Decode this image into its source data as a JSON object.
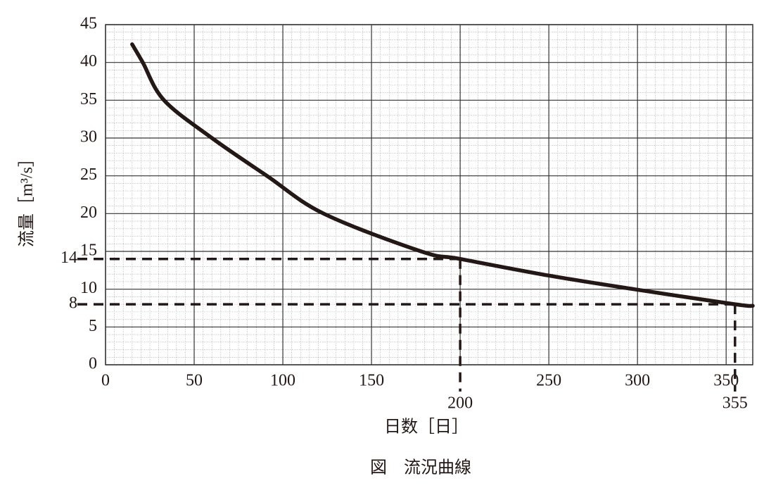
{
  "chart_data": {
    "type": "line",
    "title": "図　流況曲線",
    "x_label": "日数［日］",
    "y_label": "流量［m³/s］",
    "x": [
      15,
      21,
      33,
      60,
      91,
      123,
      178,
      200,
      250,
      298,
      355,
      365
    ],
    "series": [
      {
        "color": "#231815",
        "values": [
          42.4,
          40,
          35,
          30,
          25,
          20,
          15,
          14,
          11.8,
          10,
          8,
          7.8
        ]
      }
    ],
    "xlim": [
      0,
      365
    ],
    "ylim": [
      0,
      45
    ],
    "xticks": [
      0,
      50,
      100,
      150,
      {
        "value": 200,
        "label": null
      },
      250,
      300,
      350
    ],
    "yticks": [
      0,
      5,
      10,
      15,
      20,
      25,
      30,
      35,
      40,
      45
    ],
    "grid": true,
    "reference_points": [
      {
        "x": 200,
        "y": 14
      },
      {
        "x": 355,
        "y": 8
      }
    ]
  }
}
